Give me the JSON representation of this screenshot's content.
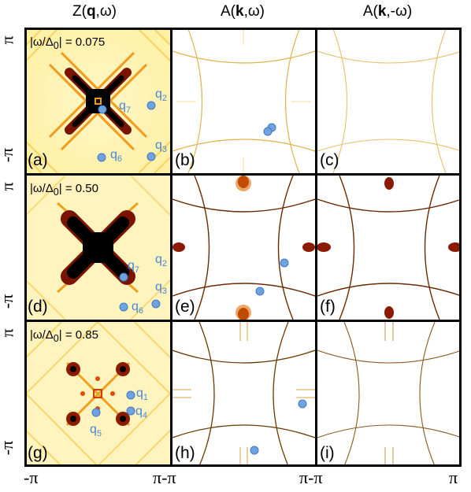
{
  "column_titles": {
    "col1": "Z(q,ω)",
    "col2": "A(k,ω)",
    "col3": "A(k,-ω)"
  },
  "axis": {
    "pi": "π",
    "neg_pi": "-π",
    "bottom_left": "-π",
    "bottom_mid1": "π-π",
    "bottom_mid2": "π-π",
    "bottom_right": "π"
  },
  "rows": [
    {
      "omega_label": "|ω/Δ0| = 0.075",
      "panels": [
        "(a)",
        "(b)",
        "(c)"
      ]
    },
    {
      "omega_label": "|ω/Δ0| = 0.50",
      "panels": [
        "(d)",
        "(e)",
        "(f)"
      ]
    },
    {
      "omega_label": "|ω/Δ0| = 0.85",
      "panels": [
        "(g)",
        "(h)",
        "(i)"
      ]
    }
  ],
  "q_labels": {
    "a": [
      "q2",
      "q7",
      "q3",
      "q6"
    ],
    "d": [
      "q2",
      "q7",
      "q3",
      "q6"
    ],
    "g": [
      "q1",
      "q4",
      "q5"
    ]
  },
  "colors": {
    "dot": "#6fa3e0",
    "qtext": "#4a86d8",
    "heat_dark": "#000000",
    "heat_mid": "#8b1a00",
    "heat_hot": "#e25800",
    "heat_light": "#fff3b0"
  }
}
